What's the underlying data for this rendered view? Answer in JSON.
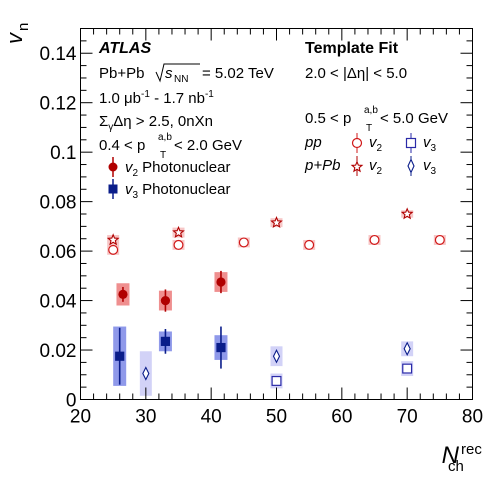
{
  "chart_data": {
    "type": "scatter",
    "xlabel": "N",
    "xlabel_sup": "rec",
    "xlabel_sub": "ch",
    "ylabel": "v",
    "ylabel_sub": "n",
    "xlim": [
      20,
      80
    ],
    "ylim": [
      0,
      0.15
    ],
    "xticks": [
      "20",
      "30",
      "40",
      "50",
      "60",
      "70",
      "80"
    ],
    "yticks": [
      "0",
      "0.02",
      "0.04",
      "0.06",
      "0.08",
      "0.1",
      "0.12",
      "0.14"
    ],
    "series": [
      {
        "key": "pnuc_v2",
        "marker": "circle-filled",
        "color": "#b00000",
        "box_color": "#ef8f8f",
        "x": [
          26.5,
          33,
          41.5
        ],
        "y": [
          0.0425,
          0.04,
          0.0475
        ],
        "err": [
          0.003,
          0.0045,
          0.0045
        ],
        "sys": [
          0.0045,
          0.004,
          0.004
        ]
      },
      {
        "key": "pnuc_v3",
        "marker": "square-filled",
        "color": "#0a1d8a",
        "box_color": "#8f99ea",
        "x": [
          26,
          33,
          41.5
        ],
        "y": [
          0.0175,
          0.0235,
          0.021
        ],
        "err": [
          0.0115,
          0.005,
          0.0085
        ],
        "sys": [
          0.012,
          0.004,
          0.005
        ]
      },
      {
        "key": "pp_v2",
        "marker": "circle-open",
        "color": "#d01818",
        "box_color": "#f7c6c6",
        "x": [
          25,
          35,
          45,
          55,
          65,
          75
        ],
        "y": [
          0.0605,
          0.0625,
          0.0635,
          0.0625,
          0.0645,
          0.0645
        ],
        "err": [
          0.0005,
          0.0005,
          0.0005,
          0.0005,
          0.0005,
          0.0005
        ],
        "sys": [
          0.002,
          0.002,
          0.002,
          0.002,
          0.002,
          0.002
        ]
      },
      {
        "key": "pp_v3",
        "marker": "square-open",
        "color": "#2a2aa8",
        "box_color": "#d2d2f7",
        "x": [
          50,
          70
        ],
        "y": [
          0.0075,
          0.0125
        ],
        "err": [
          0.0005,
          0.0005
        ],
        "sys": [
          0.003,
          0.003
        ]
      },
      {
        "key": "ppb_v2",
        "marker": "star-open",
        "color": "#b00000",
        "box_color": "#f7c6c6",
        "x": [
          25,
          35,
          50,
          70
        ],
        "y": [
          0.0645,
          0.0675,
          0.0715,
          0.075
        ],
        "err": [
          0.0008,
          0.0008,
          0.0008,
          0.0008
        ],
        "sys": [
          0.002,
          0.002,
          0.0018,
          0.0015
        ]
      },
      {
        "key": "ppb_v3",
        "marker": "diamond-open",
        "color": "#0a1d8a",
        "box_color": "#d2d2f7",
        "x": [
          30,
          50,
          70
        ],
        "y": [
          0.0105,
          0.0175,
          0.0205
        ],
        "err": [
          0.0012,
          0.0012,
          0.0012
        ],
        "sys": [
          0.009,
          0.004,
          0.003
        ]
      }
    ]
  },
  "labels": {
    "atlas": "ATLAS",
    "collision": "Pb+Pb",
    "sqrt": "s",
    "sqrt_sub": "NN",
    "energy": "= 5.02 TeV",
    "lumi": "1.0 μb",
    "lumi_exp1": "-1",
    "lumi_mid": " - 1.7 nb",
    "lumi_exp2": "-1",
    "gap_sym": "Σ",
    "gap_sub": "γ",
    "gap_rest": "Δη > 2.5, 0nXn",
    "pt_left_pre": "0.4 < p",
    "pt_sup": "a,b",
    "pt_sub": "T",
    "pt_left_post": " < 2.0 GeV",
    "template": "Template Fit",
    "deta": "2.0 < |Δη| < 5.0",
    "pt_right_pre": "0.5 < p",
    "pt_right_post": " < 5.0 GeV",
    "v_sym": "v",
    "sub2": "2",
    "sub3": "3",
    "photonuclear": "Photonuclear",
    "pp": "pp",
    "ppb": "p+Pb"
  }
}
